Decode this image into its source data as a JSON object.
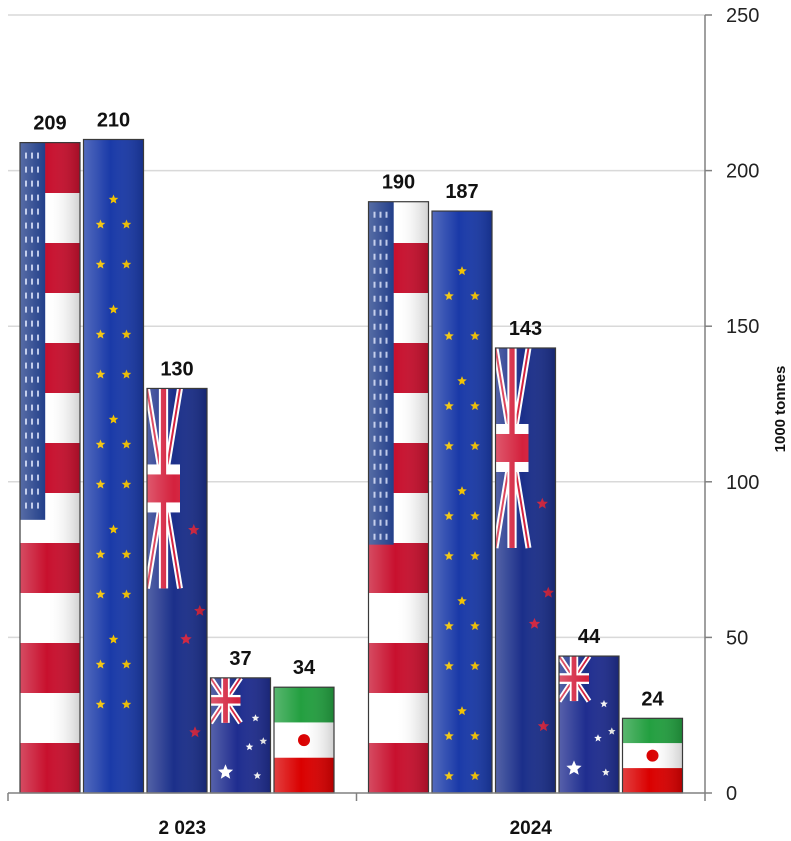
{
  "chart_data": {
    "type": "bar",
    "categories": [
      "2 023",
      "2024"
    ],
    "series": [
      {
        "flag": "usa",
        "values": [
          209,
          190
        ]
      },
      {
        "flag": "eu",
        "values": [
          210,
          187
        ]
      },
      {
        "flag": "new-zealand",
        "values": [
          130,
          143
        ]
      },
      {
        "flag": "australia",
        "values": [
          37,
          44
        ]
      },
      {
        "flag": "iran",
        "values": [
          34,
          24
        ]
      }
    ],
    "ylabel": "1000 tonnes",
    "ylim": [
      0,
      250
    ],
    "yticks": [
      0,
      50,
      100,
      150,
      200,
      250
    ],
    "y_axis_position": "right",
    "grid": true,
    "data_labels": true,
    "colors": {
      "usa_red": "#c8102e",
      "usa_blue": "#1f3c88",
      "eu_blue": "#1a3aa8",
      "eu_star": "#f2c200",
      "nz_blue": "#1b2f8a",
      "nz_red": "#d4213d",
      "au_blue": "#1f2d8f",
      "iran_green": "#239f40",
      "iran_red": "#da0000",
      "grid": "#d9d9d9",
      "axis": "#808080"
    }
  }
}
